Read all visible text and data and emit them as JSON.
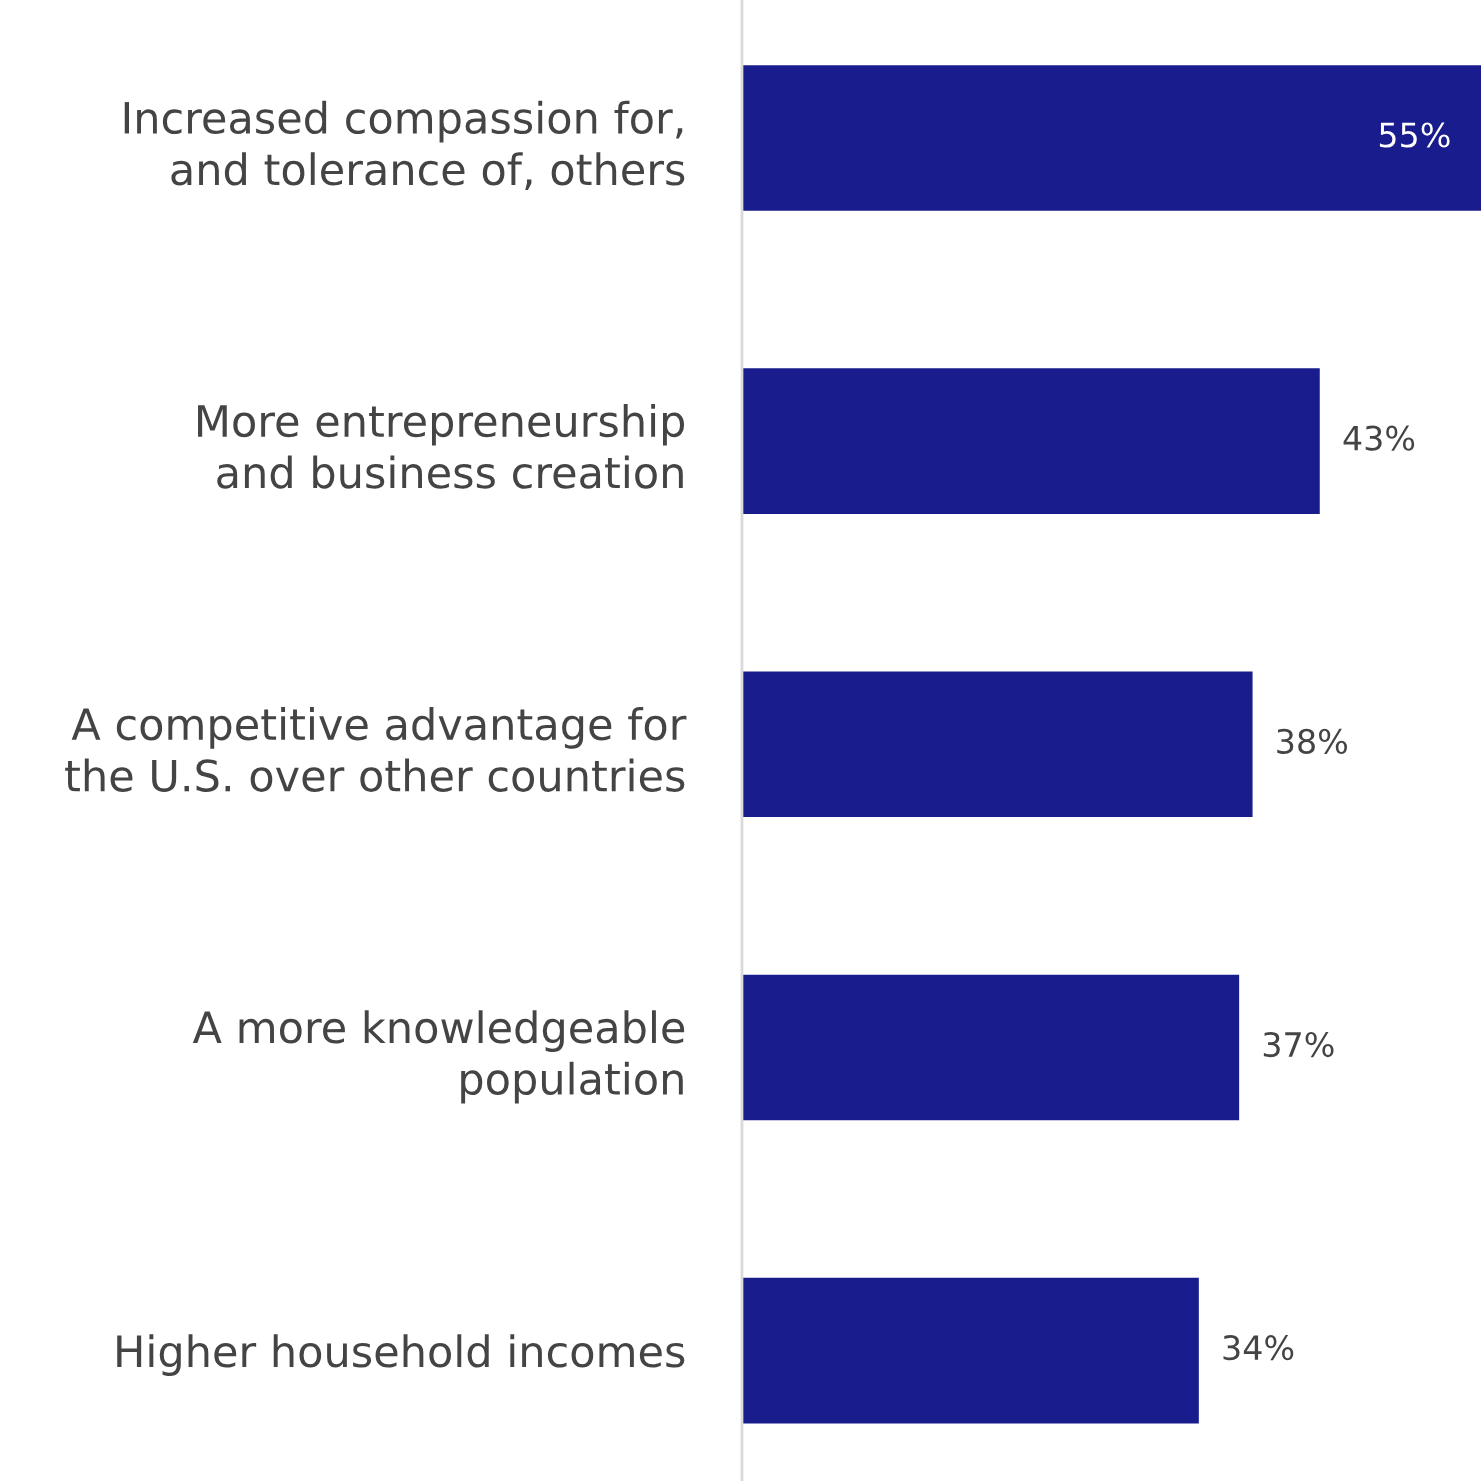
{
  "chart_data": {
    "type": "bar",
    "orientation": "horizontal",
    "categories": [
      "Increased compassion for,\nand tolerance of, others",
      "More entrepreneurship\nand business creation",
      "A competitive advantage for\nthe U.S. over other countries",
      "A more knowledgeable\npopulation",
      "Higher household incomes"
    ],
    "values": [
      55,
      43,
      38,
      37,
      34
    ],
    "value_labels": [
      "55%",
      "43%",
      "38%",
      "37%",
      "34%"
    ],
    "color": "#181c8c",
    "grid": false,
    "legend": false
  }
}
